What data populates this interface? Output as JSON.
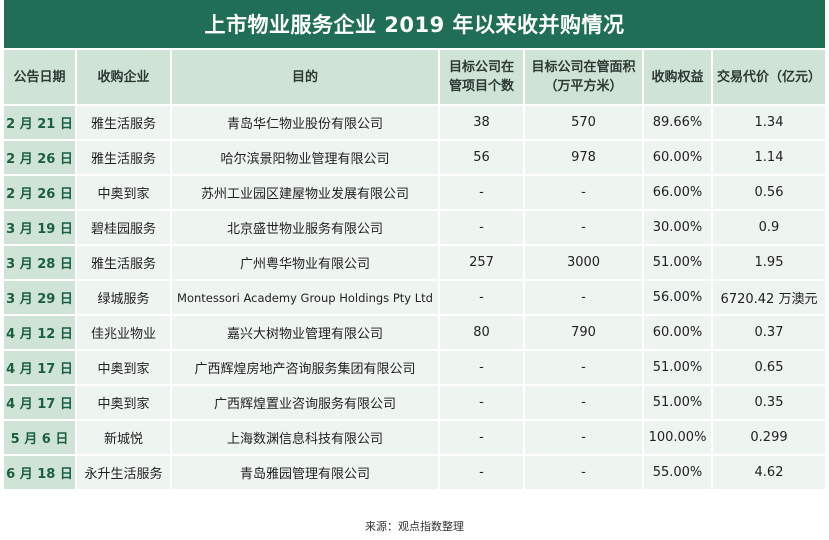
{
  "title": "上市物业服务企业 2019 年以来收并购情况",
  "headers": [
    "公告日期",
    "收购企业",
    "目的",
    "目标公司在管项目个数",
    "目标公司在管面积（万平方米）",
    "收购权益",
    "交易代价（亿元）"
  ],
  "header_lines": [
    [
      "公告日期"
    ],
    [
      "收购企业"
    ],
    [
      "目的"
    ],
    [
      "目标公司在",
      "管项目个数"
    ],
    [
      "目标公司在管面积",
      "（万平方米）"
    ],
    [
      "收购权益"
    ],
    [
      "交易代价（亿元）"
    ]
  ],
  "rows": [
    [
      "2 月 21 日",
      "雅生活服务",
      "青岛华仁物业股份有限公司",
      "38",
      "570",
      "89.66%",
      "1.34"
    ],
    [
      "2 月 26 日",
      "雅生活服务",
      "哈尔滨景阳物业管理有限公司",
      "56",
      "978",
      "60.00%",
      "1.14"
    ],
    [
      "2 月 26 日",
      "中奥到家",
      "苏州工业园区建屋物业发展有限公司",
      "-",
      "-",
      "66.00%",
      "0.56"
    ],
    [
      "3 月 19 日",
      "碧桂园服务",
      "北京盛世物业服务有限公司",
      "-",
      "-",
      "30.00%",
      "0.9"
    ],
    [
      "3 月 28 日",
      "雅生活服务",
      "广州粤华物业有限公司",
      "257",
      "3000",
      "51.00%",
      "1.95"
    ],
    [
      "3 月 29 日",
      "绿城服务",
      "Montessori Academy Group Holdings Pty Ltd",
      "-",
      "-",
      "56.00%",
      "6720.42 万澳元"
    ],
    [
      "4 月 12 日",
      "佳兆业物业",
      "嘉兴大树物业管理有限公司",
      "80",
      "790",
      "60.00%",
      "0.37"
    ],
    [
      "4 月 17 日",
      "中奥到家",
      "广西辉煌房地产咨询服务集团有限公司",
      "-",
      "-",
      "51.00%",
      "0.65"
    ],
    [
      "4 月 17 日",
      "中奥到家",
      "广西辉煌置业咨询服务有限公司",
      "-",
      "-",
      "51.00%",
      "0.35"
    ],
    [
      "5 月 6 日",
      "新城悦",
      "上海数渊信息科技有限公司",
      "-",
      "-",
      "100.00%",
      "0.299"
    ],
    [
      "6 月 18 日",
      "永升生活服务",
      "青岛雅园管理有限公司",
      "-",
      "-",
      "55.00%",
      "4.62"
    ]
  ],
  "footer": "来源：观点指数整理"
}
